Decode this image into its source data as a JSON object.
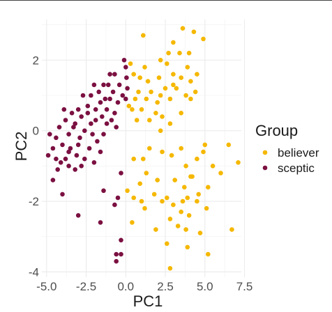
{
  "chart_data": {
    "type": "scatter",
    "title": "",
    "xlabel": "PC1",
    "ylabel": "PC2",
    "xlim": [
      -5.3,
      7.3
    ],
    "ylim": [
      -4.15,
      3.15
    ],
    "x_ticks": [
      -5.0,
      -2.5,
      0.0,
      2.5,
      5.0,
      7.5
    ],
    "x_tick_labels": [
      "-5.0",
      "-2.5",
      "0.0",
      "2.5",
      "5.0",
      "7.5"
    ],
    "y_ticks": [
      -4,
      -2,
      0,
      2
    ],
    "y_tick_labels": [
      "-4",
      "-2",
      "0",
      "2"
    ],
    "grid": true,
    "legend": {
      "title": "Group",
      "position": "right"
    },
    "series": [
      {
        "name": "believer",
        "color": "#F5B800",
        "points": [
          [
            1.1,
            2.7
          ],
          [
            3.6,
            2.9
          ],
          [
            4.9,
            2.6
          ],
          [
            4.3,
            2.8
          ],
          [
            3.0,
            2.5
          ],
          [
            2.7,
            2.2
          ],
          [
            3.4,
            2.2
          ],
          [
            2.2,
            2.0
          ],
          [
            0.3,
            1.9
          ],
          [
            1.2,
            1.8
          ],
          [
            2.6,
            1.9
          ],
          [
            4.0,
            2.2
          ],
          [
            3.9,
            1.8
          ],
          [
            4.5,
            1.6
          ],
          [
            4.1,
            1.4
          ],
          [
            4.4,
            1.1
          ],
          [
            0.5,
            1.6
          ],
          [
            0.9,
            1.5
          ],
          [
            1.4,
            1.4
          ],
          [
            2.1,
            1.5
          ],
          [
            3.0,
            1.6
          ],
          [
            3.5,
            1.5
          ],
          [
            3.0,
            1.3
          ],
          [
            3.2,
            1.2
          ],
          [
            2.5,
            1.2
          ],
          [
            1.6,
            1.1
          ],
          [
            2.2,
            1.0
          ],
          [
            0.8,
            1.1
          ],
          [
            1.3,
            0.9
          ],
          [
            0.6,
            0.9
          ],
          [
            2.0,
            0.8
          ],
          [
            2.8,
            0.9
          ],
          [
            4.1,
            0.9
          ],
          [
            3.8,
            1.0
          ],
          [
            0.4,
            0.6
          ],
          [
            1.0,
            0.6
          ],
          [
            1.9,
            0.5
          ],
          [
            0.2,
            0.7
          ],
          [
            0.7,
            0.3
          ],
          [
            1.5,
            0.3
          ],
          [
            2.8,
            0.2
          ],
          [
            2.3,
            0.4
          ],
          [
            3.5,
            0.5
          ],
          [
            2.2,
            0.0
          ],
          [
            1.5,
            -0.5
          ],
          [
            2.3,
            -0.6
          ],
          [
            4.9,
            -0.6
          ],
          [
            5.0,
            -0.4
          ],
          [
            6.5,
            -0.4
          ],
          [
            7.1,
            -0.9
          ],
          [
            3.5,
            -0.5
          ],
          [
            4.5,
            -0.8
          ],
          [
            1.1,
            -0.8
          ],
          [
            0.5,
            -0.8
          ],
          [
            2.9,
            -0.7
          ],
          [
            5.5,
            -1.0
          ],
          [
            6.0,
            -1.2
          ],
          [
            1.3,
            -1.2
          ],
          [
            3.8,
            -1.0
          ],
          [
            4.2,
            -1.3
          ],
          [
            5.2,
            -1.6
          ],
          [
            0.9,
            -1.5
          ],
          [
            2.0,
            -1.4
          ],
          [
            3.1,
            -1.4
          ],
          [
            4.1,
            -1.3
          ],
          [
            1.8,
            -1.8
          ],
          [
            3.7,
            -1.6
          ],
          [
            4.6,
            -1.8
          ],
          [
            0.1,
            -1.7
          ],
          [
            0.5,
            -1.9
          ],
          [
            1.0,
            -2.0
          ],
          [
            2.6,
            -1.9
          ],
          [
            3.9,
            -1.9
          ],
          [
            3.6,
            -2.0
          ],
          [
            4.5,
            -2.0
          ],
          [
            5.1,
            -2.2
          ],
          [
            1.2,
            -2.2
          ],
          [
            2.3,
            -2.0
          ],
          [
            3.0,
            -2.1
          ],
          [
            3.5,
            -2.3
          ],
          [
            4.0,
            -2.4
          ],
          [
            2.8,
            -2.5
          ],
          [
            3.3,
            -2.7
          ],
          [
            0.4,
            -2.6
          ],
          [
            1.9,
            -2.8
          ],
          [
            3.8,
            -2.8
          ],
          [
            6.7,
            -2.8
          ],
          [
            4.7,
            -2.9
          ],
          [
            2.6,
            -3.2
          ],
          [
            3.9,
            -3.3
          ],
          [
            5.2,
            -3.5
          ],
          [
            2.8,
            -3.9
          ]
        ]
      },
      {
        "name": "sceptic",
        "color": "#7B1041",
        "points": [
          [
            -0.1,
            2.0
          ],
          [
            0.0,
            1.8
          ],
          [
            -0.7,
            1.6
          ],
          [
            -1.0,
            1.6
          ],
          [
            -0.4,
            1.3
          ],
          [
            0.1,
            1.2
          ],
          [
            -1.4,
            1.3
          ],
          [
            -2.0,
            1.3
          ],
          [
            -1.7,
            1.1
          ],
          [
            -0.8,
            1.1
          ],
          [
            -0.2,
            1.0
          ],
          [
            -2.2,
            1.0
          ],
          [
            -2.7,
            1.0
          ],
          [
            -1.6,
            0.8
          ],
          [
            -1.0,
            0.9
          ],
          [
            -0.5,
            0.8
          ],
          [
            0.0,
            0.9
          ],
          [
            -2.4,
            0.7
          ],
          [
            -1.9,
            0.6
          ],
          [
            -1.2,
            0.6
          ],
          [
            -3.0,
            0.6
          ],
          [
            -3.4,
            0.5
          ],
          [
            -2.8,
            0.4
          ],
          [
            -1.5,
            0.4
          ],
          [
            -0.7,
            0.5
          ],
          [
            -2.2,
            0.2
          ],
          [
            -1.9,
            0.3
          ],
          [
            -1.2,
            0.2
          ],
          [
            -3.8,
            0.3
          ],
          [
            -4.2,
            0.1
          ],
          [
            -3.3,
            0.1
          ],
          [
            -2.6,
            0.0
          ],
          [
            -4.8,
            -0.1
          ],
          [
            -4.4,
            -0.2
          ],
          [
            -3.6,
            -0.1
          ],
          [
            -2.9,
            -0.2
          ],
          [
            -2.1,
            -0.1
          ],
          [
            -1.4,
            -0.1
          ],
          [
            -0.6,
            0.1
          ],
          [
            -4.0,
            -0.4
          ],
          [
            -3.5,
            -0.5
          ],
          [
            -3.0,
            -0.4
          ],
          [
            -2.3,
            -0.5
          ],
          [
            -4.6,
            -0.5
          ],
          [
            -4.9,
            -0.7
          ],
          [
            -4.4,
            -0.8
          ],
          [
            -3.8,
            -0.8
          ],
          [
            -3.1,
            -0.7
          ],
          [
            -2.6,
            -0.8
          ],
          [
            -1.6,
            -0.6
          ],
          [
            -2.0,
            -0.9
          ],
          [
            -3.6,
            -1.0
          ],
          [
            -4.3,
            -1.1
          ],
          [
            -3.2,
            -1.1
          ],
          [
            -2.8,
            -1.0
          ],
          [
            -0.3,
            -1.2
          ],
          [
            -4.6,
            -1.4
          ],
          [
            -0.5,
            -1.9
          ],
          [
            -4.0,
            -1.8
          ],
          [
            -1.4,
            -1.7
          ],
          [
            -0.7,
            -2.1
          ],
          [
            -3.0,
            -2.4
          ],
          [
            -1.6,
            -2.6
          ],
          [
            -0.3,
            -3.1
          ],
          [
            -0.6,
            -3.5
          ],
          [
            -0.3,
            -3.5
          ],
          [
            -0.6,
            -3.7
          ],
          [
            -3.6,
            -0.6
          ],
          [
            -2.4,
            0.5
          ],
          [
            -1.1,
            1.3
          ],
          [
            0.05,
            1.5
          ],
          [
            -1.8,
            -0.3
          ],
          [
            -4.1,
            -0.9
          ],
          [
            -3.2,
            0.2
          ],
          [
            -1.3,
            0.9
          ],
          [
            -0.9,
            0.3
          ],
          [
            -3.9,
            0.6
          ]
        ]
      }
    ]
  }
}
